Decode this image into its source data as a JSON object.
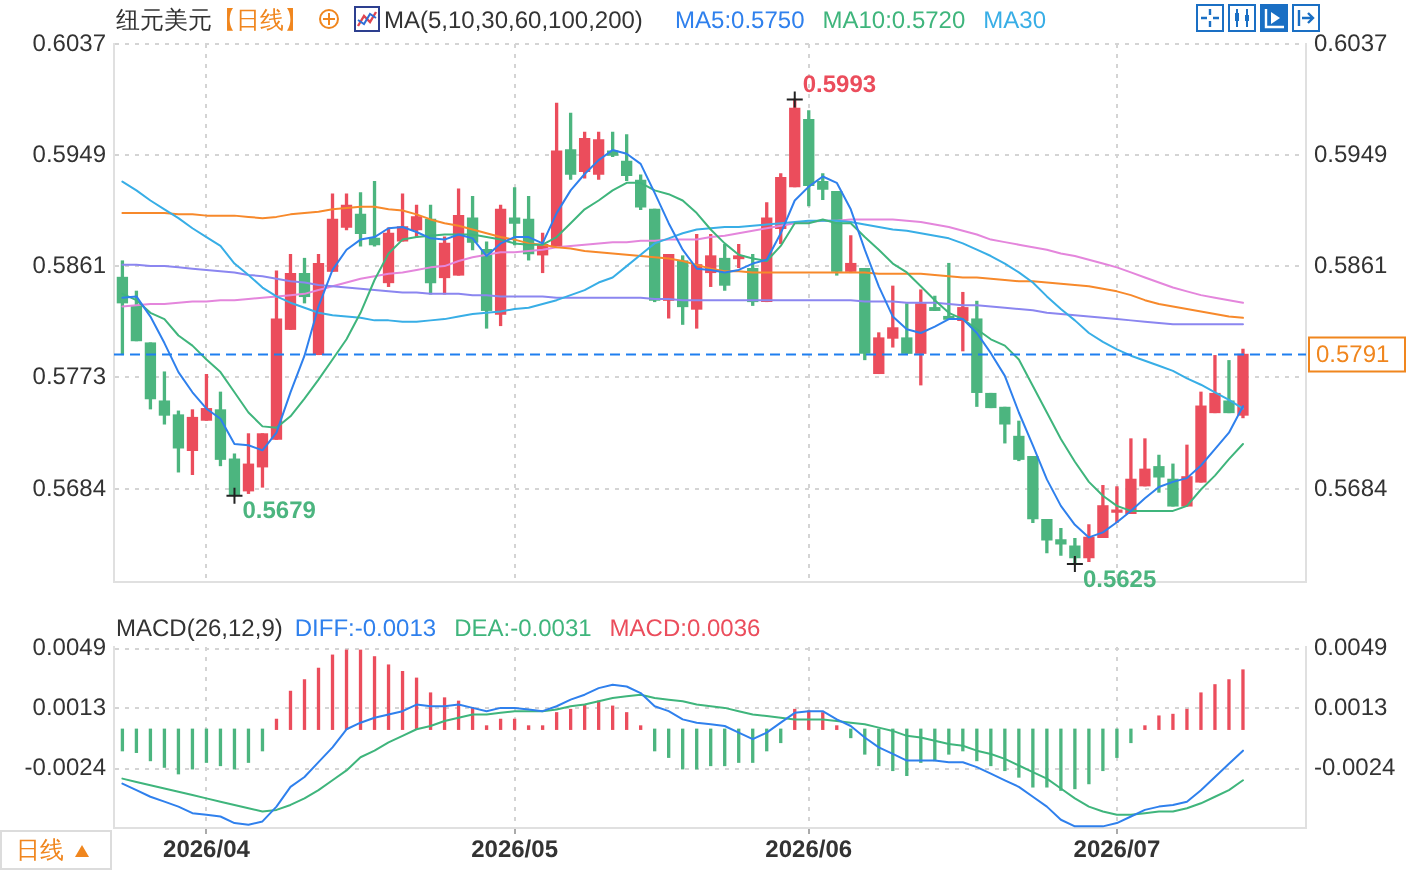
{
  "chart_data": [
    {
      "type": "candlestick",
      "title": "纽元美元",
      "subtitle": "【日线】",
      "legend_title": "MA(5,10,30,60,100,200)",
      "legend": "top right",
      "grid": true,
      "tick_labels": "y",
      "categories": [
        null,
        null,
        null,
        null,
        null,
        null,
        "2026/04",
        null,
        null,
        null,
        null,
        null,
        null,
        null,
        null,
        null,
        null,
        null,
        null,
        null,
        null,
        null,
        null,
        null,
        null,
        null,
        null,
        null,
        "2026/05",
        null,
        null,
        null,
        null,
        null,
        null,
        null,
        null,
        null,
        null,
        null,
        null,
        null,
        null,
        null,
        null,
        null,
        null,
        null,
        null,
        "2026/06",
        null,
        null,
        null,
        null,
        null,
        null,
        null,
        null,
        null,
        null,
        null,
        null,
        null,
        null,
        null,
        null,
        null,
        null,
        null,
        null,
        null,
        "2026/07",
        null,
        null,
        null,
        null,
        null,
        null,
        null,
        null,
        null
      ],
      "ohlc": [
        [
          0.5852,
          0.5865,
          0.5791,
          0.5832
        ],
        [
          0.5829,
          0.5841,
          0.5802,
          0.5802
        ],
        [
          0.58,
          0.58,
          0.5748,
          0.5756
        ],
        [
          0.5754,
          0.5777,
          0.5736,
          0.5743
        ],
        [
          0.5743,
          0.5746,
          0.5698,
          0.5717
        ],
        [
          0.5715,
          0.5747,
          0.5696,
          0.5741
        ],
        [
          0.5739,
          0.5775,
          0.5739,
          0.5748
        ],
        [
          0.5747,
          0.5761,
          0.5703,
          0.5708
        ],
        [
          0.5708,
          0.5712,
          0.5679,
          0.568
        ],
        [
          0.5683,
          0.5728,
          0.5681,
          0.5704
        ],
        [
          0.5702,
          0.5728,
          0.5686,
          0.5728
        ],
        [
          0.5724,
          0.5857,
          0.5724,
          0.5819
        ],
        [
          0.5811,
          0.587,
          0.5811,
          0.5855
        ],
        [
          0.5855,
          0.5867,
          0.5832,
          0.5837
        ],
        [
          0.5791,
          0.587,
          0.5791,
          0.5863
        ],
        [
          0.5857,
          0.5918,
          0.5857,
          0.5898
        ],
        [
          0.5892,
          0.5918,
          0.589,
          0.5909
        ],
        [
          0.5902,
          0.5919,
          0.5877,
          0.5887
        ],
        [
          0.5883,
          0.5928,
          0.5877,
          0.5878
        ],
        [
          0.5848,
          0.5891,
          0.5845,
          0.5887
        ],
        [
          0.5881,
          0.5918,
          0.5881,
          0.5892
        ],
        [
          0.589,
          0.5909,
          0.5884,
          0.59
        ],
        [
          0.5898,
          0.5909,
          0.5839,
          0.5848
        ],
        [
          0.5852,
          0.5884,
          0.5839,
          0.5879
        ],
        [
          0.5854,
          0.5922,
          0.5854,
          0.5901
        ],
        [
          0.5899,
          0.5916,
          0.5874,
          0.588
        ],
        [
          0.5874,
          0.588,
          0.5812,
          0.5826
        ],
        [
          0.5823,
          0.5909,
          0.5814,
          0.5906
        ],
        [
          0.5899,
          0.5923,
          0.5878,
          0.5895
        ],
        [
          0.5898,
          0.5916,
          0.5866,
          0.5871
        ],
        [
          0.587,
          0.5887,
          0.5856,
          0.5878
        ],
        [
          0.5877,
          0.599,
          0.5877,
          0.5952
        ],
        [
          0.5953,
          0.5982,
          0.593,
          0.5934
        ],
        [
          0.5936,
          0.5967,
          0.5931,
          0.5962
        ],
        [
          0.5934,
          0.5967,
          0.593,
          0.5961
        ],
        [
          0.5952,
          0.5967,
          0.5948,
          0.5949
        ],
        [
          0.5944,
          0.5965,
          0.5929,
          0.5933
        ],
        [
          0.5929,
          0.5933,
          0.5906,
          0.5908
        ],
        [
          0.5906,
          0.5906,
          0.5833,
          0.5834
        ],
        [
          0.5834,
          0.587,
          0.582,
          0.587
        ],
        [
          0.5865,
          0.5869,
          0.5815,
          0.5829
        ],
        [
          0.5827,
          0.5886,
          0.5812,
          0.5862
        ],
        [
          0.5856,
          0.5886,
          0.5845,
          0.5869
        ],
        [
          0.5867,
          0.5878,
          0.5842,
          0.5846
        ],
        [
          0.5867,
          0.5878,
          0.586,
          0.5869
        ],
        [
          0.5859,
          0.587,
          0.583,
          0.5833
        ],
        [
          0.5833,
          0.5911,
          0.5833,
          0.5899
        ],
        [
          0.5891,
          0.5934,
          0.5879,
          0.5931
        ],
        [
          0.5924,
          0.5993,
          0.5924,
          0.5986
        ],
        [
          0.5977,
          0.5984,
          0.5909,
          0.5925
        ],
        [
          0.5928,
          0.5934,
          0.5914,
          0.5922
        ],
        [
          0.592,
          0.592,
          0.5854,
          0.5857
        ],
        [
          0.5857,
          0.5885,
          0.5856,
          0.5863
        ],
        [
          0.5859,
          0.5859,
          0.5787,
          0.5792
        ],
        [
          0.5776,
          0.5808,
          0.5776,
          0.5804
        ],
        [
          0.5804,
          0.5845,
          0.5797,
          0.5812
        ],
        [
          0.5804,
          0.5831,
          0.5792,
          0.5792
        ],
        [
          0.5792,
          0.5842,
          0.5767,
          0.5831
        ],
        [
          0.5828,
          0.5837,
          0.5826,
          0.5826
        ],
        [
          0.5821,
          0.5863,
          0.5819,
          0.5819
        ],
        [
          0.5818,
          0.584,
          0.5794,
          0.5828
        ],
        [
          0.5819,
          0.5833,
          0.575,
          0.5761
        ],
        [
          0.576,
          0.576,
          0.5749,
          0.5749
        ],
        [
          0.5749,
          0.5749,
          0.5721,
          0.5736
        ],
        [
          0.5726,
          0.5738,
          0.5707,
          0.5708
        ],
        [
          0.571,
          0.571,
          0.5658,
          0.5661
        ],
        [
          0.566,
          0.566,
          0.5634,
          0.5644
        ],
        [
          0.5644,
          0.5653,
          0.5632,
          0.5641
        ],
        [
          0.5639,
          0.5645,
          0.5625,
          0.563
        ],
        [
          0.563,
          0.5656,
          0.5627,
          0.5646
        ],
        [
          0.5646,
          0.5687,
          0.5646,
          0.5671
        ],
        [
          0.5666,
          0.5686,
          0.5658,
          0.5667
        ],
        [
          0.5665,
          0.5724,
          0.5665,
          0.5692
        ],
        [
          0.5687,
          0.5724,
          0.5687,
          0.57
        ],
        [
          0.5702,
          0.5711,
          0.5682,
          0.5694
        ],
        [
          0.5692,
          0.5704,
          0.5671,
          0.5671
        ],
        [
          0.5671,
          0.5719,
          0.5671,
          0.5694
        ],
        [
          0.569,
          0.5761,
          0.569,
          0.575
        ],
        [
          0.5745,
          0.579,
          0.5745,
          0.576
        ],
        [
          0.5754,
          0.5786,
          0.5745,
          0.5745
        ],
        [
          0.5743,
          0.5795,
          0.5741,
          0.5791
        ]
      ],
      "colors": [
        "#4cb57f",
        "#4cb57f",
        "#4cb57f",
        "#4cb57f",
        "#4cb57f",
        "#eb4d5c",
        "#eb4d5c",
        "#4cb57f",
        "#4cb57f",
        "#eb4d5c",
        "#eb4d5c",
        "#eb4d5c",
        "#eb4d5c",
        "#4cb57f",
        "#eb4d5c",
        "#eb4d5c",
        "#eb4d5c",
        "#4cb57f",
        "#4cb57f",
        "#eb4d5c",
        "#eb4d5c",
        "#eb4d5c",
        "#4cb57f",
        "#eb4d5c",
        "#eb4d5c",
        "#4cb57f",
        "#4cb57f",
        "#eb4d5c",
        "#4cb57f",
        "#4cb57f",
        "#eb4d5c",
        "#eb4d5c",
        "#4cb57f",
        "#eb4d5c",
        "#eb4d5c",
        "#4cb57f",
        "#4cb57f",
        "#4cb57f",
        "#4cb57f",
        "#eb4d5c",
        "#4cb57f",
        "#eb4d5c",
        "#eb4d5c",
        "#4cb57f",
        "#eb4d5c",
        "#4cb57f",
        "#eb4d5c",
        "#eb4d5c",
        "#eb4d5c",
        "#4cb57f",
        "#4cb57f",
        "#4cb57f",
        "#eb4d5c",
        "#4cb57f",
        "#eb4d5c",
        "#eb4d5c",
        "#4cb57f",
        "#eb4d5c",
        "#4cb57f",
        "#4cb57f",
        "#eb4d5c",
        "#4cb57f",
        "#4cb57f",
        "#4cb57f",
        "#4cb57f",
        "#4cb57f",
        "#4cb57f",
        "#4cb57f",
        "#4cb57f",
        "#eb4d5c",
        "#eb4d5c",
        "#eb4d5c",
        "#eb4d5c",
        "#eb4d5c",
        "#4cb57f",
        "#4cb57f",
        "#eb4d5c",
        "#eb4d5c",
        "#eb4d5c",
        "#4cb57f",
        "#eb4d5c"
      ],
      "series": [
        {
          "name": "MA5:0.5750",
          "type": "line",
          "color": "#2f80ed",
          "values": [
            0.5836,
            0.5837,
            0.5821,
            0.58,
            0.5777,
            0.5761,
            0.5748,
            0.574,
            0.572,
            0.5719,
            0.5715,
            0.5729,
            0.5761,
            0.579,
            0.5829,
            0.5858,
            0.5874,
            0.5882,
            0.5884,
            0.5891,
            0.5892,
            0.5888,
            0.5883,
            0.5882,
            0.5886,
            0.5883,
            0.5869,
            0.5879,
            0.5884,
            0.5884,
            0.5879,
            0.5903,
            0.5921,
            0.5934,
            0.5945,
            0.5953,
            0.595,
            0.5942,
            0.5919,
            0.5895,
            0.5874,
            0.5859,
            0.5858,
            0.5856,
            0.5858,
            0.5863,
            0.5866,
            0.5887,
            0.5913,
            0.5924,
            0.5932,
            0.5927,
            0.5906,
            0.5874,
            0.5845,
            0.5821,
            0.5811,
            0.5808,
            0.5813,
            0.5819,
            0.5819,
            0.5808,
            0.5792,
            0.5774,
            0.5745,
            0.5719,
            0.5692,
            0.5671,
            0.5656,
            0.5646,
            0.565,
            0.5658,
            0.5667,
            0.5677,
            0.5686,
            0.569,
            0.5693,
            0.5703,
            0.5716,
            0.5729,
            0.575
          ]
        },
        {
          "name": "MA10:0.5720",
          "type": "line",
          "color": "#3fb57c",
          "values": [
            0.5839,
            0.5834,
            0.5824,
            0.5819,
            0.5806,
            0.5798,
            0.5787,
            0.5777,
            0.5761,
            0.5745,
            0.5734,
            0.5733,
            0.5742,
            0.5756,
            0.5771,
            0.5787,
            0.5803,
            0.5824,
            0.585,
            0.5871,
            0.5882,
            0.5884,
            0.5885,
            0.5886,
            0.5886,
            0.5886,
            0.5884,
            0.5882,
            0.5879,
            0.5878,
            0.5878,
            0.5884,
            0.5895,
            0.5906,
            0.5913,
            0.5921,
            0.5927,
            0.5927,
            0.5921,
            0.5918,
            0.5913,
            0.5903,
            0.589,
            0.5879,
            0.587,
            0.5867,
            0.5865,
            0.5877,
            0.5895,
            0.5895,
            0.5898,
            0.5895,
            0.5895,
            0.5884,
            0.5874,
            0.5863,
            0.5856,
            0.5845,
            0.5834,
            0.5824,
            0.5819,
            0.5811,
            0.5803,
            0.5798,
            0.5787,
            0.5766,
            0.5745,
            0.5724,
            0.5706,
            0.569,
            0.5679,
            0.5671,
            0.5667,
            0.5667,
            0.5667,
            0.5667,
            0.5671,
            0.5684,
            0.5695,
            0.5708,
            0.572
          ]
        },
        {
          "name": "MA30",
          "type": "line",
          "color": "#38aee6",
          "values": [
            0.5928,
            0.5921,
            0.5913,
            0.5906,
            0.5899,
            0.5891,
            0.5884,
            0.5877,
            0.5863,
            0.5854,
            0.5844,
            0.5837,
            0.5832,
            0.5828,
            0.5824,
            0.5822,
            0.5821,
            0.582,
            0.5818,
            0.5818,
            0.5817,
            0.5817,
            0.5818,
            0.5819,
            0.5821,
            0.5823,
            0.5824,
            0.5825,
            0.5827,
            0.5828,
            0.5831,
            0.5834,
            0.5838,
            0.5842,
            0.5848,
            0.5852,
            0.5861,
            0.587,
            0.5879,
            0.5883,
            0.5887,
            0.589,
            0.5891,
            0.5892,
            0.5892,
            0.5893,
            0.5894,
            0.5895,
            0.5896,
            0.5897,
            0.5897,
            0.5897,
            0.5896,
            0.5894,
            0.5892,
            0.589,
            0.5889,
            0.5887,
            0.5885,
            0.5883,
            0.5879,
            0.5874,
            0.5869,
            0.5863,
            0.5856,
            0.5848,
            0.5837,
            0.5827,
            0.5818,
            0.5808,
            0.5801,
            0.5795,
            0.579,
            0.5786,
            0.5782,
            0.5778,
            0.5772,
            0.5767,
            0.5761,
            0.5755,
            0.5748
          ]
        },
        {
          "type": "line",
          "color": "#f7892b",
          "values": [
            0.5903,
            0.5903,
            0.5903,
            0.5903,
            0.5902,
            0.5902,
            0.5901,
            0.5901,
            0.5901,
            0.59,
            0.5899,
            0.59,
            0.5902,
            0.5903,
            0.5904,
            0.5906,
            0.5907,
            0.5908,
            0.5908,
            0.5906,
            0.5905,
            0.5902,
            0.5898,
            0.5895,
            0.5893,
            0.589,
            0.5887,
            0.5884,
            0.5882,
            0.5879,
            0.5878,
            0.5876,
            0.5875,
            0.5873,
            0.5872,
            0.5871,
            0.587,
            0.5869,
            0.5868,
            0.5867,
            0.5865,
            0.5862,
            0.5859,
            0.5857,
            0.5857,
            0.5856,
            0.5856,
            0.5856,
            0.5856,
            0.5856,
            0.5856,
            0.5856,
            0.5856,
            0.5856,
            0.5855,
            0.5855,
            0.5855,
            0.5855,
            0.5854,
            0.5853,
            0.5852,
            0.5852,
            0.5851,
            0.585,
            0.5849,
            0.5849,
            0.5848,
            0.5847,
            0.5846,
            0.5845,
            0.5843,
            0.5841,
            0.5838,
            0.5834,
            0.5831,
            0.5829,
            0.5827,
            0.5825,
            0.5823,
            0.5821,
            0.582
          ]
        },
        {
          "type": "line",
          "color": "#8b86f0",
          "values": [
            0.5862,
            0.5862,
            0.5861,
            0.5861,
            0.586,
            0.5859,
            0.5858,
            0.5857,
            0.5856,
            0.5854,
            0.5853,
            0.5851,
            0.5849,
            0.5848,
            0.5846,
            0.5845,
            0.5844,
            0.5843,
            0.5842,
            0.5841,
            0.584,
            0.584,
            0.5839,
            0.5839,
            0.5839,
            0.5838,
            0.5838,
            0.5837,
            0.5837,
            0.5837,
            0.5837,
            0.5836,
            0.5836,
            0.5836,
            0.5836,
            0.5836,
            0.5836,
            0.5836,
            0.5835,
            0.5835,
            0.5834,
            0.5834,
            0.5834,
            0.5834,
            0.5834,
            0.5834,
            0.5834,
            0.5834,
            0.5834,
            0.5834,
            0.5834,
            0.5834,
            0.5834,
            0.5833,
            0.5833,
            0.5833,
            0.5832,
            0.5832,
            0.5832,
            0.5831,
            0.583,
            0.583,
            0.5829,
            0.5828,
            0.5827,
            0.5826,
            0.5824,
            0.5823,
            0.5822,
            0.5821,
            0.582,
            0.5819,
            0.5818,
            0.5817,
            0.5816,
            0.5815,
            0.5815,
            0.5815,
            0.5815,
            0.5815,
            0.5815
          ]
        },
        {
          "type": "line",
          "color": "#e486dc",
          "values": [
            0.5829,
            0.583,
            0.5831,
            0.5831,
            0.5832,
            0.5833,
            0.5833,
            0.5834,
            0.5834,
            0.5835,
            0.5836,
            0.5837,
            0.5838,
            0.5839,
            0.5842,
            0.5845,
            0.5848,
            0.5851,
            0.5853,
            0.5855,
            0.5856,
            0.5858,
            0.586,
            0.5861,
            0.5865,
            0.5868,
            0.587,
            0.5872,
            0.5872,
            0.5873,
            0.5874,
            0.5876,
            0.5877,
            0.5878,
            0.5879,
            0.588,
            0.588,
            0.5881,
            0.5881,
            0.5882,
            0.5882,
            0.5882,
            0.5884,
            0.5885,
            0.5887,
            0.5889,
            0.5891,
            0.5893,
            0.5895,
            0.5896,
            0.5897,
            0.5897,
            0.5898,
            0.5898,
            0.5898,
            0.5898,
            0.5897,
            0.5896,
            0.5894,
            0.5892,
            0.5889,
            0.5886,
            0.5882,
            0.588,
            0.5878,
            0.5876,
            0.5874,
            0.5871,
            0.5869,
            0.5866,
            0.5863,
            0.586,
            0.5856,
            0.5852,
            0.5848,
            0.5844,
            0.5841,
            0.5838,
            0.5836,
            0.5834,
            0.5832
          ]
        }
      ],
      "ylim": [
        0.5611,
        0.6037
      ],
      "yticks": [
        0.5684,
        0.5773,
        0.5861,
        0.5949,
        0.6037
      ],
      "y2lim": [
        0.5611,
        0.6037
      ],
      "y2ticks": [
        0.5684,
        0.5861,
        0.5949,
        0.6037
      ],
      "ref_lines": [
        {
          "axis": "y",
          "value": 0.5791,
          "label": "0.5791",
          "color": "#1f7fef",
          "line_style": "dashed"
        }
      ],
      "annotations": [
        "0.5993",
        "0.5679",
        "0.5625"
      ]
    },
    {
      "type": "bar",
      "legend_title": "MACD(26,12,9)",
      "legend": "top left",
      "grid": true,
      "categories": [
        null,
        null,
        null,
        null,
        null,
        null,
        "2026/04",
        null,
        null,
        null,
        null,
        null,
        null,
        null,
        null,
        null,
        null,
        null,
        null,
        null,
        null,
        null,
        null,
        null,
        null,
        null,
        null,
        null,
        "2026/05",
        null,
        null,
        null,
        null,
        null,
        null,
        null,
        null,
        null,
        null,
        null,
        null,
        null,
        null,
        null,
        null,
        null,
        null,
        null,
        null,
        "2026/06",
        null,
        null,
        null,
        null,
        null,
        null,
        null,
        null,
        null,
        null,
        null,
        null,
        null,
        null,
        null,
        null,
        null,
        null,
        null,
        null,
        null,
        "2026/07",
        null,
        null,
        null,
        null,
        null,
        null,
        null,
        null,
        null
      ],
      "series": [
        {
          "name": "DIFF:-0.0013",
          "type": "line",
          "color": "#2f80ed",
          "values": [
            -0.0033,
            -0.0037,
            -0.0041,
            -0.0044,
            -0.0047,
            -0.0051,
            -0.0052,
            -0.0053,
            -0.0057,
            -0.0058,
            -0.0056,
            -0.0047,
            -0.0035,
            -0.0029,
            -0.002,
            -0.0011,
            0.0,
            0.0004,
            0.0007,
            0.0009,
            0.0011,
            0.0015,
            0.0014,
            0.0014,
            0.0015,
            0.0013,
            0.0011,
            0.0013,
            0.0013,
            0.0012,
            0.0011,
            0.0014,
            0.0018,
            0.0021,
            0.0025,
            0.0027,
            0.0026,
            0.0022,
            0.0014,
            0.0011,
            0.0006,
            0.0004,
            0.0003,
            0.0002,
            -0.0002,
            -0.0006,
            -0.0002,
            0.0004,
            0.001,
            0.0011,
            0.0011,
            0.0006,
            0.0002,
            -0.0005,
            -0.0011,
            -0.0015,
            -0.0019,
            -0.0019,
            -0.0019,
            -0.002,
            -0.002,
            -0.0023,
            -0.0027,
            -0.0031,
            -0.0035,
            -0.0041,
            -0.0047,
            -0.0055,
            -0.0059,
            -0.0059,
            -0.0059,
            -0.0057,
            -0.0053,
            -0.0049,
            -0.0047,
            -0.0046,
            -0.0044,
            -0.0037,
            -0.0029,
            -0.0021,
            -0.0013
          ]
        },
        {
          "name": "DEA:-0.0031",
          "type": "line",
          "color": "#3fb57c",
          "values": [
            -0.003,
            -0.0032,
            -0.0034,
            -0.0036,
            -0.0038,
            -0.004,
            -0.0042,
            -0.0044,
            -0.0046,
            -0.0048,
            -0.005,
            -0.0049,
            -0.0046,
            -0.0042,
            -0.0037,
            -0.0031,
            -0.0025,
            -0.0017,
            -0.0013,
            -0.0008,
            -0.0004,
            0.0,
            0.0002,
            0.0005,
            0.0007,
            0.0009,
            0.0009,
            0.001,
            0.0011,
            0.0011,
            0.0011,
            0.0012,
            0.0014,
            0.0015,
            0.0017,
            0.0019,
            0.002,
            0.0021,
            0.0019,
            0.0018,
            0.0017,
            0.0015,
            0.0014,
            0.0013,
            0.0011,
            0.0009,
            0.0008,
            0.0007,
            0.0006,
            0.0006,
            0.0006,
            0.0005,
            0.0004,
            0.0003,
            0.0001,
            -0.0001,
            -0.0004,
            -0.0005,
            -0.0007,
            -0.0009,
            -0.001,
            -0.0013,
            -0.0015,
            -0.0018,
            -0.0022,
            -0.0026,
            -0.003,
            -0.0036,
            -0.0042,
            -0.0047,
            -0.005,
            -0.0052,
            -0.0052,
            -0.0051,
            -0.005,
            -0.005,
            -0.0048,
            -0.0045,
            -0.0041,
            -0.0037,
            -0.0031
          ]
        },
        {
          "name": "MACD:0.0036",
          "colors": [
            "#4cb57f",
            "#4cb57f",
            "#4cb57f",
            "#4cb57f",
            "#4cb57f",
            "#4cb57f",
            "#4cb57f",
            "#4cb57f",
            "#4cb57f",
            "#4cb57f",
            "#4cb57f",
            "#eb4d5c",
            "#eb4d5c",
            "#eb4d5c",
            "#eb4d5c",
            "#eb4d5c",
            "#eb4d5c",
            "#eb4d5c",
            "#eb4d5c",
            "#eb4d5c",
            "#eb4d5c",
            "#eb4d5c",
            "#eb4d5c",
            "#eb4d5c",
            "#eb4d5c",
            "#eb4d5c",
            "#eb4d5c",
            "#eb4d5c",
            "#eb4d5c",
            "#eb4d5c",
            "#eb4d5c",
            "#eb4d5c",
            "#eb4d5c",
            "#eb4d5c",
            "#eb4d5c",
            "#eb4d5c",
            "#eb4d5c",
            "#eb4d5c",
            "#4cb57f",
            "#4cb57f",
            "#4cb57f",
            "#4cb57f",
            "#4cb57f",
            "#4cb57f",
            "#4cb57f",
            "#4cb57f",
            "#4cb57f",
            "#4cb57f",
            "#eb4d5c",
            "#eb4d5c",
            "#eb4d5c",
            "#eb4d5c",
            "#4cb57f",
            "#4cb57f",
            "#4cb57f",
            "#4cb57f",
            "#4cb57f",
            "#4cb57f",
            "#4cb57f",
            "#4cb57f",
            "#4cb57f",
            "#4cb57f",
            "#4cb57f",
            "#4cb57f",
            "#4cb57f",
            "#4cb57f",
            "#4cb57f",
            "#4cb57f",
            "#4cb57f",
            "#4cb57f",
            "#4cb57f",
            "#4cb57f",
            "#4cb57f",
            "#eb4d5c",
            "#eb4d5c",
            "#eb4d5c",
            "#eb4d5c",
            "#eb4d5c",
            "#eb4d5c",
            "#eb4d5c",
            "#eb4d5c"
          ],
          "values": [
            -0.0013,
            -0.0014,
            -0.0019,
            -0.0023,
            -0.0027,
            -0.0024,
            -0.002,
            -0.0022,
            -0.0024,
            -0.002,
            -0.0013,
            0.0006,
            0.0023,
            0.003,
            0.0037,
            0.0045,
            0.0048,
            0.0048,
            0.0044,
            0.0039,
            0.0035,
            0.0031,
            0.0022,
            0.0019,
            0.0017,
            0.0013,
            0.0002,
            0.0006,
            0.0006,
            0.0002,
            0.0002,
            0.001,
            0.0012,
            0.0015,
            0.0017,
            0.0014,
            0.001,
            0.0002,
            -0.0013,
            -0.0017,
            -0.0024,
            -0.0024,
            -0.0022,
            -0.0022,
            -0.002,
            -0.002,
            -0.0013,
            -0.0008,
            0.0012,
            0.0011,
            0.001,
            0.0002,
            -0.0005,
            -0.0015,
            -0.0022,
            -0.0025,
            -0.0028,
            -0.002,
            -0.0019,
            -0.0015,
            -0.0013,
            -0.0019,
            -0.0022,
            -0.0025,
            -0.0029,
            -0.0035,
            -0.0035,
            -0.0037,
            -0.0036,
            -0.0033,
            -0.0025,
            -0.0017,
            -0.0008,
            0.0002,
            0.0008,
            0.0009,
            0.0012,
            0.0022,
            0.0027,
            0.003,
            0.0036
          ]
        }
      ],
      "ylim": [
        -0.006,
        0.005
      ],
      "yticks": [
        -0.0024,
        0.0013,
        0.0049
      ],
      "y2lim": [
        -0.006,
        0.005
      ],
      "y2ticks": [
        -0.0024,
        0.0013,
        0.0049
      ],
      "annotations": [
        "日线"
      ]
    }
  ]
}
